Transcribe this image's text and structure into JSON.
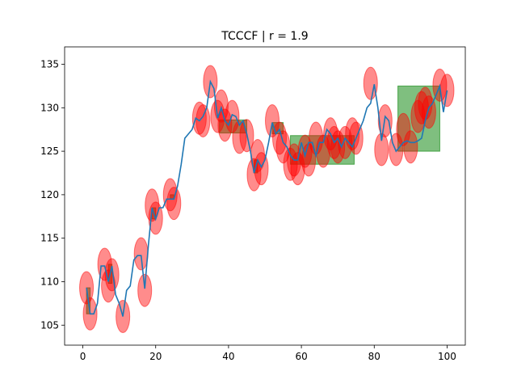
{
  "chart_data": {
    "type": "line",
    "title": "TCCCF | r = 1.9",
    "xlabel": "",
    "ylabel": "",
    "xlim": [
      -5,
      105
    ],
    "ylim": [
      102.7,
      137.0
    ],
    "x_ticks": [
      0,
      20,
      40,
      60,
      80,
      100
    ],
    "y_ticks": [
      105,
      110,
      115,
      120,
      125,
      130,
      135
    ],
    "grid": false,
    "legend": "none",
    "colors": {
      "line": "#1f77b4",
      "ellipse": "#ff0000",
      "rect": "#008000"
    },
    "series": [
      {
        "x": [
          1,
          2,
          3,
          4,
          5,
          6,
          7,
          8,
          9,
          10,
          11,
          12,
          13,
          14,
          15,
          16,
          17,
          18,
          19,
          20,
          21,
          22,
          23,
          24,
          25,
          26,
          27,
          28,
          29,
          30,
          31,
          32,
          33,
          34,
          35,
          36,
          37,
          38,
          39,
          40,
          41,
          42,
          43,
          44,
          45,
          46,
          47,
          48,
          49,
          50,
          51,
          52,
          53,
          54,
          55,
          56,
          57,
          58,
          59,
          60,
          61,
          62,
          63,
          64,
          65,
          66,
          67,
          68,
          69,
          70,
          71,
          72,
          73,
          74,
          75,
          76,
          77,
          78,
          79,
          80,
          81,
          82,
          83,
          84,
          85,
          86,
          87,
          88,
          89,
          90,
          91,
          92,
          93,
          94,
          95,
          96,
          97,
          98,
          99,
          100
        ],
        "values": [
          109.3,
          106.3,
          106.3,
          107.5,
          111.8,
          111.8,
          110.0,
          111.8,
          108.5,
          107.5,
          106.0,
          109.0,
          109.5,
          112.5,
          113.0,
          113.0,
          109.2,
          114.2,
          118.5,
          117.2,
          118.5,
          118.5,
          119.5,
          119.5,
          119.5,
          121.0,
          123.5,
          126.5,
          127.0,
          127.5,
          128.8,
          128.5,
          129.0,
          130.0,
          133.0,
          132.2,
          128.8,
          130.0,
          128.5,
          128.0,
          129.2,
          129.0,
          128.0,
          128.5,
          127.0,
          125.0,
          122.5,
          124.0,
          123.2,
          124.0,
          126.0,
          128.3,
          127.0,
          127.5,
          126.0,
          125.5,
          124.5,
          124.0,
          124.0,
          126.0,
          124.5,
          126.0,
          126.0,
          124.5,
          126.0,
          126.0,
          127.5,
          127.0,
          126.0,
          126.5,
          125.5,
          126.5,
          126.0,
          125.5,
          126.5,
          127.5,
          128.5,
          130.0,
          130.5,
          132.7,
          130.0,
          126.2,
          129.0,
          128.5,
          126.0,
          125.0,
          125.5,
          126.0,
          126.2,
          126.0,
          126.0,
          126.2,
          126.5,
          128.5,
          130.0,
          130.5,
          131.5,
          132.5,
          129.5,
          132.0
        ]
      }
    ],
    "ellipses": [
      {
        "x": 1,
        "y": 109.3
      },
      {
        "x": 2,
        "y": 106.3
      },
      {
        "x": 6,
        "y": 112.0
      },
      {
        "x": 7,
        "y": 109.5
      },
      {
        "x": 8,
        "y": 110.8
      },
      {
        "x": 11,
        "y": 106.0
      },
      {
        "x": 16,
        "y": 113.2
      },
      {
        "x": 17,
        "y": 109.0
      },
      {
        "x": 19,
        "y": 118.8
      },
      {
        "x": 20,
        "y": 117.3
      },
      {
        "x": 24,
        "y": 120.0
      },
      {
        "x": 25,
        "y": 119.0
      },
      {
        "x": 32,
        "y": 128.8
      },
      {
        "x": 33,
        "y": 128.5
      },
      {
        "x": 35,
        "y": 133.0
      },
      {
        "x": 37,
        "y": 129.0
      },
      {
        "x": 38,
        "y": 130.2
      },
      {
        "x": 39,
        "y": 128.0
      },
      {
        "x": 41,
        "y": 129.0
      },
      {
        "x": 43,
        "y": 126.6
      },
      {
        "x": 45,
        "y": 126.8
      },
      {
        "x": 47,
        "y": 122.3
      },
      {
        "x": 48,
        "y": 124.5
      },
      {
        "x": 49,
        "y": 123.0
      },
      {
        "x": 52,
        "y": 128.5
      },
      {
        "x": 54,
        "y": 126.5
      },
      {
        "x": 55,
        "y": 125.5
      },
      {
        "x": 57,
        "y": 123.5
      },
      {
        "x": 58,
        "y": 124.0
      },
      {
        "x": 59,
        "y": 123.0
      },
      {
        "x": 61,
        "y": 125.0
      },
      {
        "x": 62,
        "y": 124.0
      },
      {
        "x": 64,
        "y": 126.5
      },
      {
        "x": 66,
        "y": 125.0
      },
      {
        "x": 68,
        "y": 127.0
      },
      {
        "x": 69,
        "y": 126.0
      },
      {
        "x": 70,
        "y": 125.5
      },
      {
        "x": 72,
        "y": 126.0
      },
      {
        "x": 74,
        "y": 127.0
      },
      {
        "x": 75,
        "y": 126.5
      },
      {
        "x": 79,
        "y": 132.8
      },
      {
        "x": 82,
        "y": 125.2
      },
      {
        "x": 83,
        "y": 128.5
      },
      {
        "x": 86,
        "y": 125.2
      },
      {
        "x": 88,
        "y": 127.5
      },
      {
        "x": 90,
        "y": 125.5
      },
      {
        "x": 92,
        "y": 129.0
      },
      {
        "x": 93,
        "y": 130.0
      },
      {
        "x": 94,
        "y": 130.5
      },
      {
        "x": 95,
        "y": 129.5
      },
      {
        "x": 98,
        "y": 132.6
      },
      {
        "x": 100,
        "y": 132.0
      }
    ],
    "rects": [
      {
        "x0": 1,
        "x1": 2,
        "y0": 106.3,
        "y1": 109.3
      },
      {
        "x0": 7,
        "x1": 8,
        "y0": 109.8,
        "y1": 112.0
      },
      {
        "x0": 19,
        "x1": 20,
        "y0": 117.2,
        "y1": 118.5
      },
      {
        "x0": 24,
        "x1": 25,
        "y0": 119.5,
        "y1": 120.0
      },
      {
        "x0": 37.5,
        "x1": 45,
        "y0": 127.1,
        "y1": 128.6
      },
      {
        "x0": 47,
        "x1": 48,
        "y0": 122.5,
        "y1": 124.0
      },
      {
        "x0": 52,
        "x1": 55,
        "y0": 127.0,
        "y1": 128.3
      },
      {
        "x0": 57,
        "x1": 74.5,
        "y0": 123.5,
        "y1": 126.8
      },
      {
        "x0": 86.5,
        "x1": 98,
        "y0": 125.0,
        "y1": 132.5
      }
    ]
  }
}
